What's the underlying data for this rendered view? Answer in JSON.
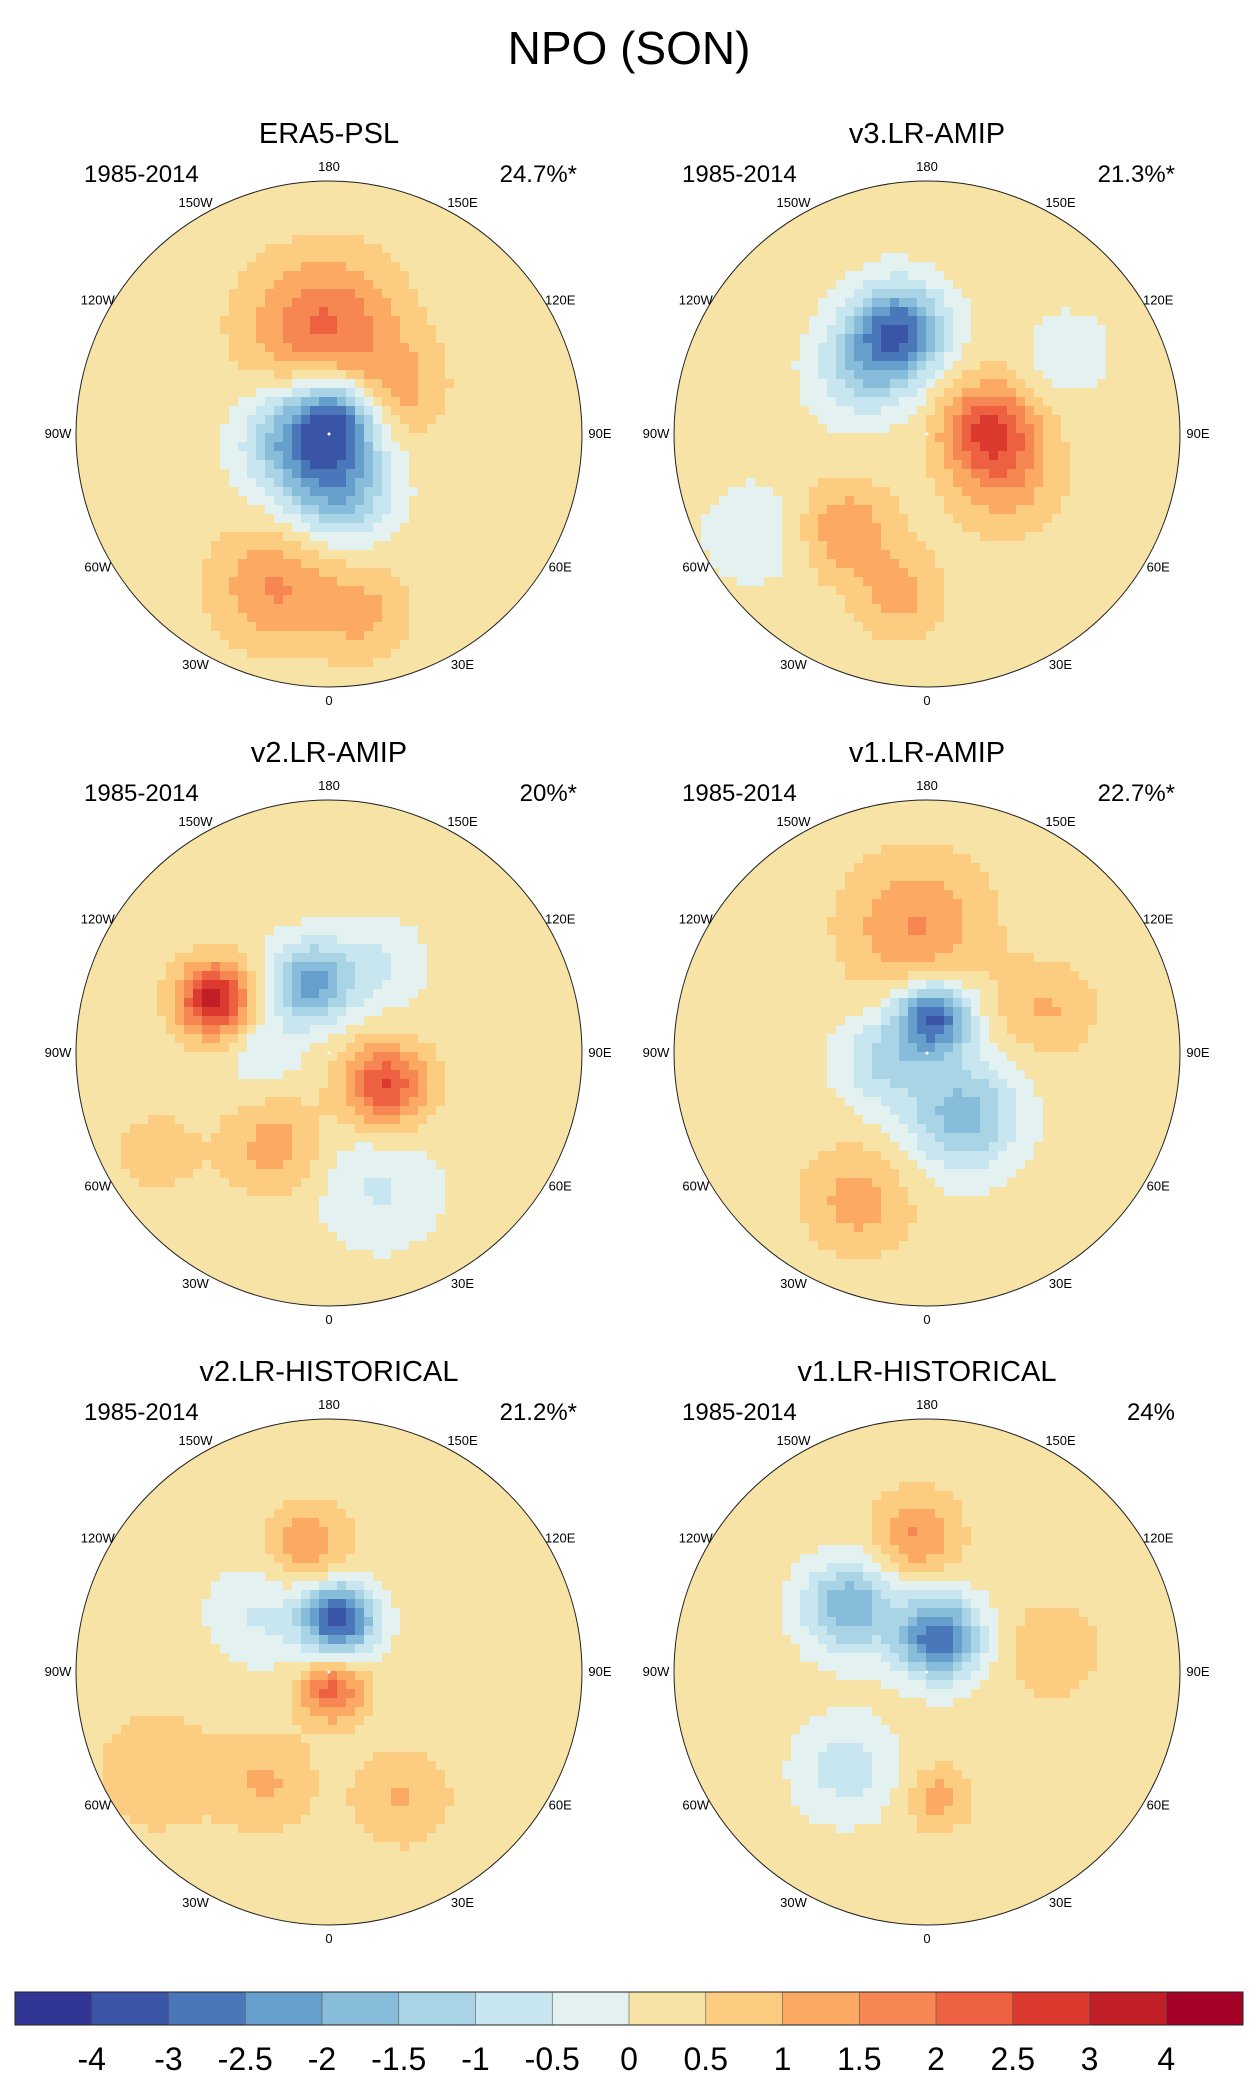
{
  "title": "NPO (SON)",
  "chart_data": {
    "type": "heatmap",
    "projection": "north-polar-stereographic",
    "layout": "3x2",
    "panels": [
      {
        "name": "ERA5-PSL",
        "period": "1985-2014",
        "explained_variance": "24.7%*",
        "blobs": [
          {
            "lon": -170,
            "lat": 60,
            "value": 1.3,
            "spread_deg": 13
          },
          {
            "lon": 170,
            "lat": 58,
            "value": 0.7,
            "spread_deg": 12
          },
          {
            "lon": 125,
            "lat": 68,
            "value": 1.0,
            "spread_deg": 9
          },
          {
            "lon": -20,
            "lat": 45,
            "value": 1.3,
            "spread_deg": 11
          },
          {
            "lon": 10,
            "lat": 40,
            "value": 0.9,
            "spread_deg": 9
          },
          {
            "lon": 150,
            "lat": 85,
            "value": -2.6,
            "spread_deg": 8
          },
          {
            "lon": -80,
            "lat": 80,
            "value": -2.0,
            "spread_deg": 10
          },
          {
            "lon": 10,
            "lat": 75,
            "value": -2.2,
            "spread_deg": 10
          }
        ]
      },
      {
        "name": "v3.LR-AMIP",
        "period": "1985-2014",
        "explained_variance": "21.3%*",
        "blobs": [
          {
            "lon": -165,
            "lat": 60,
            "value": -3.0,
            "spread_deg": 9
          },
          {
            "lon": -135,
            "lat": 65,
            "value": -1.4,
            "spread_deg": 10
          },
          {
            "lon": 95,
            "lat": 73,
            "value": 2.2,
            "spread_deg": 9
          },
          {
            "lon": 60,
            "lat": 65,
            "value": 1.0,
            "spread_deg": 10
          },
          {
            "lon": -40,
            "lat": 55,
            "value": 1.2,
            "spread_deg": 9
          },
          {
            "lon": -10,
            "lat": 45,
            "value": 1.0,
            "spread_deg": 8
          },
          {
            "lon": -60,
            "lat": 35,
            "value": -0.7,
            "spread_deg": 10
          },
          {
            "lon": 120,
            "lat": 45,
            "value": -0.7,
            "spread_deg": 8
          }
        ]
      },
      {
        "name": "v2.LR-AMIP",
        "period": "1985-2014",
        "explained_variance": "20%*",
        "blobs": [
          {
            "lon": -115,
            "lat": 55,
            "value": 3.0,
            "spread_deg": 7
          },
          {
            "lon": -165,
            "lat": 70,
            "value": -2.4,
            "spread_deg": 8
          },
          {
            "lon": 150,
            "lat": 62,
            "value": -0.8,
            "spread_deg": 9
          },
          {
            "lon": 60,
            "lat": 72,
            "value": 2.3,
            "spread_deg": 8
          },
          {
            "lon": -30,
            "lat": 60,
            "value": 1.0,
            "spread_deg": 9
          },
          {
            "lon": 20,
            "lat": 50,
            "value": -0.8,
            "spread_deg": 12
          },
          {
            "lon": -60,
            "lat": 35,
            "value": 0.4,
            "spread_deg": 10
          },
          {
            "lon": -90,
            "lat": 72,
            "value": -0.7,
            "spread_deg": 7
          }
        ]
      },
      {
        "name": "v1.LR-AMIP",
        "period": "1985-2014",
        "explained_variance": "22.7%*",
        "blobs": [
          {
            "lon": -175,
            "lat": 55,
            "value": 1.3,
            "spread_deg": 13
          },
          {
            "lon": 170,
            "lat": 80,
            "value": -3.3,
            "spread_deg": 7
          },
          {
            "lon": 30,
            "lat": 70,
            "value": -2.0,
            "spread_deg": 11
          },
          {
            "lon": -80,
            "lat": 78,
            "value": -1.3,
            "spread_deg": 9
          },
          {
            "lon": -25,
            "lat": 45,
            "value": 1.0,
            "spread_deg": 10
          },
          {
            "lon": 110,
            "lat": 55,
            "value": 0.8,
            "spread_deg": 9
          }
        ]
      },
      {
        "name": "v2.LR-HISTORICAL",
        "period": "1985-2014",
        "explained_variance": "21.2%*",
        "blobs": [
          {
            "lon": -170,
            "lat": 55,
            "value": 1.2,
            "spread_deg": 8
          },
          {
            "lon": 170,
            "lat": 75,
            "value": -3.6,
            "spread_deg": 7
          },
          {
            "lon": 10,
            "lat": 85,
            "value": 2.0,
            "spread_deg": 6
          },
          {
            "lon": -30,
            "lat": 55,
            "value": 0.8,
            "spread_deg": 9
          },
          {
            "lon": 30,
            "lat": 50,
            "value": 0.8,
            "spread_deg": 9
          },
          {
            "lon": -130,
            "lat": 65,
            "value": -0.8,
            "spread_deg": 10
          },
          {
            "lon": -60,
            "lat": 35,
            "value": 0.6,
            "spread_deg": 12
          }
        ]
      },
      {
        "name": "v1.LR-HISTORICAL",
        "period": "1985-2014",
        "explained_variance": "24%",
        "blobs": [
          {
            "lon": -175,
            "lat": 52,
            "value": 1.3,
            "spread_deg": 8
          },
          {
            "lon": 160,
            "lat": 80,
            "value": -3.2,
            "spread_deg": 8
          },
          {
            "lon": -130,
            "lat": 62,
            "value": -2.2,
            "spread_deg": 9
          },
          {
            "lon": -40,
            "lat": 55,
            "value": -1.0,
            "spread_deg": 10
          },
          {
            "lon": 5,
            "lat": 55,
            "value": 1.0,
            "spread_deg": 6
          },
          {
            "lon": 100,
            "lat": 55,
            "value": 0.7,
            "spread_deg": 9
          }
        ]
      }
    ],
    "longitude_labels": {
      "180": "180",
      "150W": "150W",
      "150E": "150E",
      "120W": "120W",
      "120E": "120E",
      "90W": "90W",
      "90E": "90E",
      "60W": "60W",
      "60E": "60E",
      "30W": "30W",
      "30E": "30E",
      "0": "0"
    },
    "colorbar": {
      "levels": [
        -4,
        -3,
        -2.5,
        -2,
        -1.5,
        -1,
        -0.5,
        0,
        0.5,
        1,
        1.5,
        2,
        2.5,
        3,
        4
      ],
      "labels": [
        "-4",
        "-3",
        "-2.5",
        "-2",
        "-1.5",
        "-1",
        "-0.5",
        "0",
        "0.5",
        "1",
        "1.5",
        "2",
        "2.5",
        "3",
        "4"
      ],
      "colors": [
        "#313695",
        "#3a55a6",
        "#4a77b9",
        "#679fcc",
        "#87bddb",
        "#a8d4e6",
        "#c7e6f0",
        "#e3f2f0",
        "#f8e3a6",
        "#fccc80",
        "#fcaa63",
        "#f78752",
        "#ee6140",
        "#dc3a2e",
        "#c11f28",
        "#a50026"
      ]
    }
  }
}
